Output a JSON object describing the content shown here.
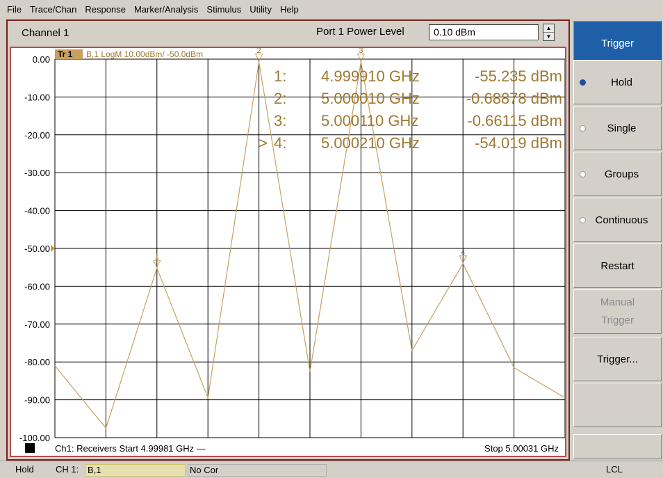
{
  "menu": [
    "File",
    "Trace/Chan",
    "Response",
    "Marker/Analysis",
    "Stimulus",
    "Utility",
    "Help"
  ],
  "channel": {
    "title": "Channel 1",
    "power_label": "Port 1 Power Level",
    "power_value": "0.10 dBm"
  },
  "trace": {
    "badge": "Tr 1",
    "info": "B,1 LogM 10.00dBm/  -50.0dBm"
  },
  "markers": [
    {
      "id": "1",
      "label": "1:",
      "freq": "4.999910 GHz",
      "value": "-55.235 dBm",
      "active": false
    },
    {
      "id": "2",
      "label": "2:",
      "freq": "5.000010 GHz",
      "value": "-0.68878 dBm",
      "active": false
    },
    {
      "id": "3",
      "label": "3:",
      "freq": "5.000110 GHz",
      "value": "-0.66115 dBm",
      "active": false
    },
    {
      "id": "4",
      "label": "4:",
      "freq": "5.000210 GHz",
      "value": "-54.019 dBm",
      "active": true
    }
  ],
  "footer": {
    "start": "Ch1: Receivers Start  4.99981 GHz —",
    "stop": "Stop  5.00031 GHz"
  },
  "softkeys": {
    "header": "Trigger",
    "hold": "Hold",
    "single": "Single",
    "groups": "Groups",
    "continuous": "Continuous",
    "restart": "Restart",
    "manual_line1": "Manual",
    "manual_line2": "Trigger",
    "trigger_menu": "Trigger..."
  },
  "status": {
    "hold": "Hold",
    "channel": "CH 1:",
    "measurement": "B,1",
    "correction": "No Cor",
    "remote": "LCL"
  },
  "colors": {
    "trace": "#c8a060",
    "marker_text": "#a07830",
    "softkey_header": "#1f5fa8",
    "plot_border": "#b05050"
  },
  "chart_data": {
    "type": "line",
    "x_unit": "GHz",
    "xlim": [
      4.99981,
      5.00031
    ],
    "ylim": [
      -100,
      0
    ],
    "ylabel": "",
    "xlabel": "",
    "y_ticks": [
      "0.00",
      "-10.00",
      "-20.00",
      "-30.00",
      "-40.00",
      "-50.00",
      "-60.00",
      "-70.00",
      "-80.00",
      "-90.00",
      "-100.00"
    ],
    "reference_level": -50,
    "grid": true,
    "series": [
      {
        "x": [
          4.99981,
          4.99986,
          4.99991,
          4.99996,
          5.00001,
          5.00006,
          5.00011,
          5.00016,
          5.00021,
          5.00026,
          5.00031
        ],
        "values": [
          -81,
          -97.5,
          -55.2,
          -89.5,
          -0.7,
          -82.5,
          -0.7,
          -77,
          -54.0,
          -81.5,
          -89.5
        ]
      }
    ]
  }
}
